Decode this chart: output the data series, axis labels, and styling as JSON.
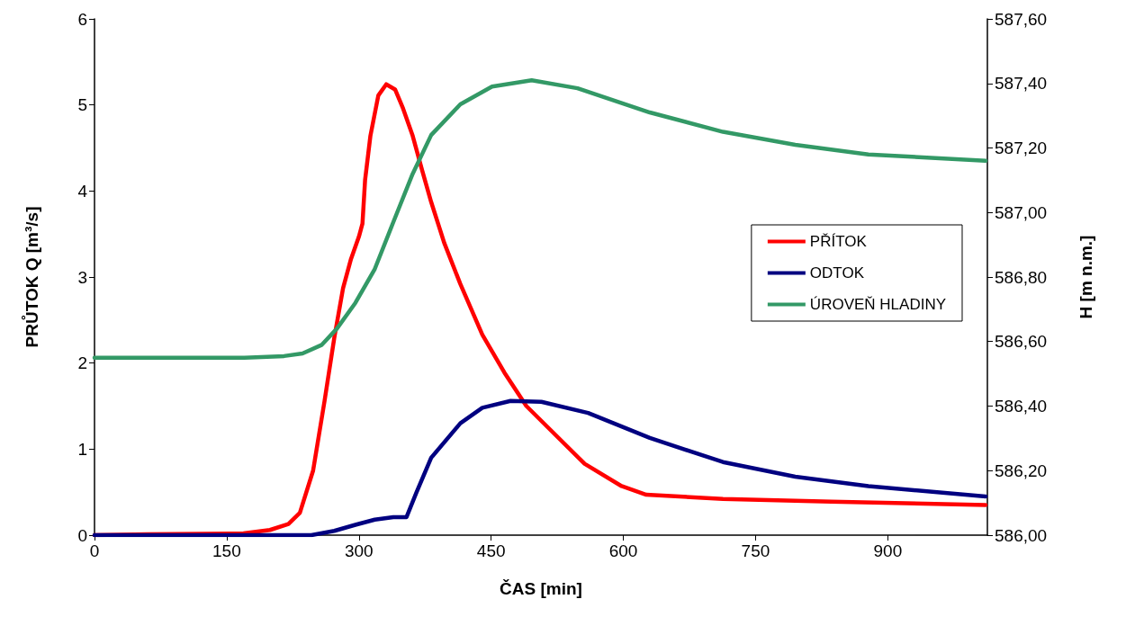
{
  "chart_data": {
    "type": "line",
    "xlabel": "ČAS [min]",
    "ylabel": "PRŮTOK Q [m³/s]",
    "y2label": "H [m n.m.]",
    "xlim": [
      0,
      1013
    ],
    "xticks": [
      0,
      150,
      300,
      450,
      600,
      750,
      900
    ],
    "ylim": [
      0,
      6
    ],
    "yticks": [
      0,
      1,
      2,
      3,
      4,
      5,
      6
    ],
    "y2lim": [
      586,
      587.6
    ],
    "y2ticks": [
      {
        "value": 586,
        "label": "586,00"
      },
      {
        "value": 586.2,
        "label": "586,20"
      },
      {
        "value": 586.4,
        "label": "586,40"
      },
      {
        "value": 586.6,
        "label": "586,60"
      },
      {
        "value": 586.8,
        "label": "586,80"
      },
      {
        "value": 587,
        "label": "587,00"
      },
      {
        "value": 587.2,
        "label": "587,20"
      },
      {
        "value": 587.4,
        "label": "587,40"
      },
      {
        "value": 587.6,
        "label": "587,60"
      }
    ],
    "grid": false,
    "legend": "right",
    "marker": "none",
    "line_style": "solid",
    "series": [
      {
        "name": "PŘÍTOK",
        "color": "#ff0000",
        "x": [
          0,
          60,
          169,
          199,
          220,
          233,
          248,
          261,
          272,
          282,
          291,
          300,
          304,
          307,
          313,
          322,
          331,
          341,
          350,
          361,
          372,
          382,
          397,
          415,
          440,
          465,
          490,
          556,
          598,
          626,
          713,
          836,
          1011
        ],
        "values": [
          0,
          0.01,
          0.02,
          0.06,
          0.13,
          0.26,
          0.75,
          1.56,
          2.29,
          2.87,
          3.21,
          3.47,
          3.62,
          4.13,
          4.64,
          5.11,
          5.24,
          5.18,
          4.96,
          4.64,
          4.23,
          3.87,
          3.39,
          2.92,
          2.33,
          1.89,
          1.5,
          0.83,
          0.57,
          0.47,
          0.42,
          0.39,
          0.35
        ]
      },
      {
        "name": "ODTOK",
        "color": "#000080",
        "x": [
          0,
          246,
          272,
          296,
          318,
          339,
          354,
          365,
          382,
          415,
          440,
          472,
          507,
          560,
          630,
          713,
          795,
          878,
          1011
        ],
        "values": [
          0,
          0,
          0.05,
          0.12,
          0.18,
          0.21,
          0.21,
          0.49,
          0.9,
          1.3,
          1.48,
          1.56,
          1.55,
          1.42,
          1.13,
          0.85,
          0.68,
          0.57,
          0.45
        ]
      },
      {
        "name": "ÚROVEŇ HLADINY",
        "color": "#339966",
        "axis": "y2",
        "x": [
          0,
          170,
          215,
          236,
          258,
          275,
          296,
          318,
          339,
          361,
          382,
          415,
          451,
          496,
          548,
          630,
          713,
          795,
          878,
          1011
        ],
        "values": [
          586.55,
          586.55,
          586.555,
          586.563,
          586.59,
          586.64,
          586.72,
          586.825,
          586.97,
          587.12,
          587.24,
          587.335,
          587.39,
          587.41,
          587.385,
          587.31,
          587.25,
          587.21,
          587.18,
          587.16
        ]
      }
    ]
  }
}
